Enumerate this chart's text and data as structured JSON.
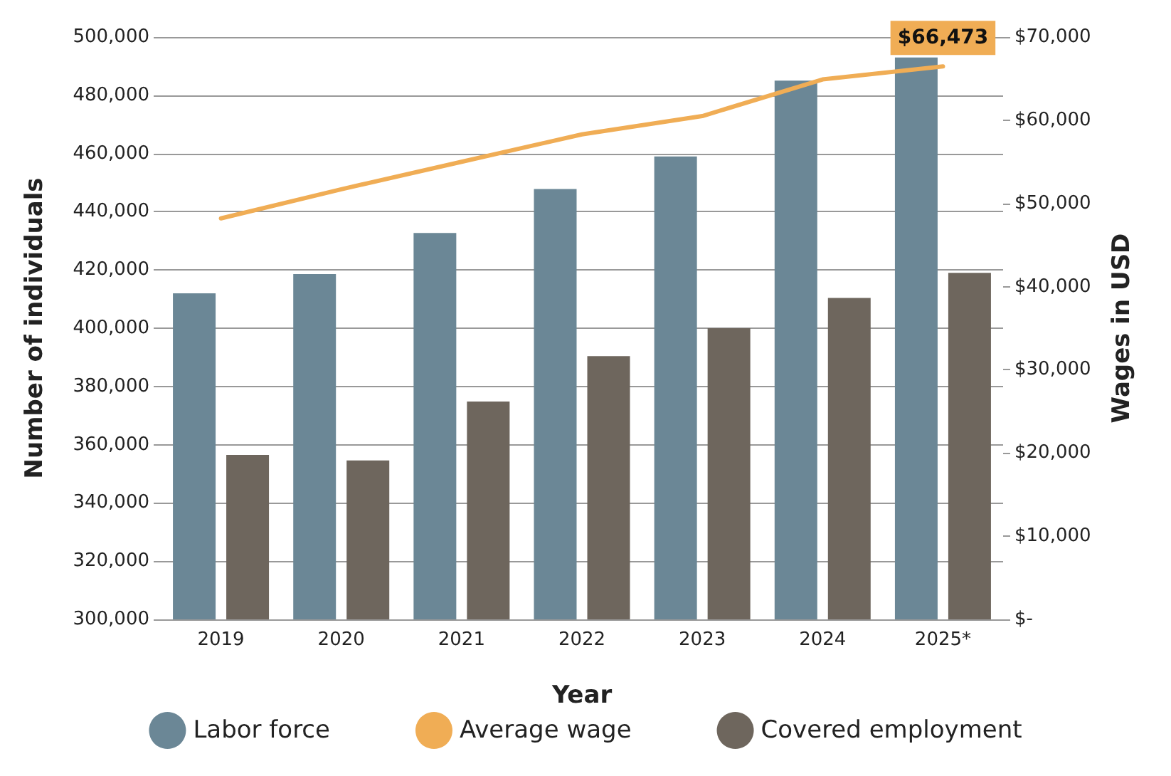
{
  "chart_data": {
    "type": "bar",
    "xlabel": "Year",
    "ylabel": "Number of individuals",
    "y2label": "Wages in USD",
    "categories": [
      "2019",
      "2020",
      "2021",
      "2022",
      "2023",
      "2024",
      "2025*"
    ],
    "series": [
      {
        "name": "Labor force",
        "color": "#6b8796",
        "values": [
          412000,
          418600,
          432700,
          447800,
          459000,
          485000,
          493000
        ]
      },
      {
        "name": "Average wage",
        "type": "line",
        "axis": "y2",
        "color": "#f0ad55",
        "values": [
          48200,
          51700,
          55000,
          58300,
          60500,
          64900,
          66473
        ],
        "value_labels": [
          null,
          null,
          null,
          null,
          null,
          null,
          "$66,473"
        ]
      },
      {
        "name": "Covered employment",
        "color": "#6e665d",
        "values": [
          356500,
          354600,
          374800,
          390400,
          400000,
          410400,
          419000
        ]
      }
    ],
    "ylim": [
      300000,
      500000
    ],
    "yticks": [
      {
        "value": 300000,
        "label": "300,000"
      },
      {
        "value": 320000,
        "label": "320,000"
      },
      {
        "value": 340000,
        "label": "340,000"
      },
      {
        "value": 360000,
        "label": "360,000"
      },
      {
        "value": 380000,
        "label": "380,000"
      },
      {
        "value": 400000,
        "label": "400,000"
      },
      {
        "value": 420000,
        "label": "420,000"
      },
      {
        "value": 440000,
        "label": "440,000"
      },
      {
        "value": 460000,
        "label": "460,000"
      },
      {
        "value": 480000,
        "label": "480,000"
      },
      {
        "value": 500000,
        "label": "500,000"
      }
    ],
    "y2lim": [
      0,
      70000
    ],
    "y2ticks": [
      {
        "value": 0,
        "label": "$-"
      },
      {
        "value": 10000,
        "label": "$10,000"
      },
      {
        "value": 20000,
        "label": "$20,000"
      },
      {
        "value": 30000,
        "label": "$30,000"
      },
      {
        "value": 40000,
        "label": "$40,000"
      },
      {
        "value": 50000,
        "label": "$50,000"
      },
      {
        "value": 60000,
        "label": "$60,000"
      },
      {
        "value": 70000,
        "label": "$70,000"
      }
    ],
    "grid": "y",
    "legend": "bottom",
    "marker": "none",
    "line_style": "solid"
  }
}
